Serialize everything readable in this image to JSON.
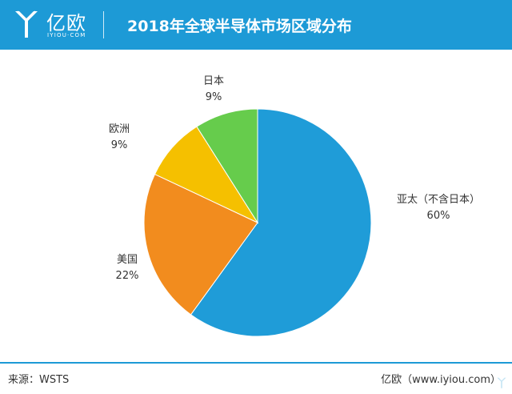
{
  "header": {
    "brand_name": "亿欧",
    "brand_sub": "IYIOU·COM",
    "title": "2018年全球半导体市场区域分布"
  },
  "chart_data": {
    "type": "pie",
    "title": "2018年全球半导体市场区域分布",
    "unit": "%",
    "slices": [
      {
        "label": "亚太（不含日本）",
        "value": 60,
        "value_label": "60%",
        "color": "#1f9cd8"
      },
      {
        "label": "美国",
        "value": 22,
        "value_label": "22%",
        "color": "#f28c1e"
      },
      {
        "label": "欧洲",
        "value": 9,
        "value_label": "9%",
        "color": "#f5c000"
      },
      {
        "label": "日本",
        "value": 9,
        "value_label": "9%",
        "color": "#66cc4c"
      }
    ]
  },
  "footer": {
    "source": "来源：WSTS",
    "credit": "亿欧（www.iyiou.com）"
  }
}
